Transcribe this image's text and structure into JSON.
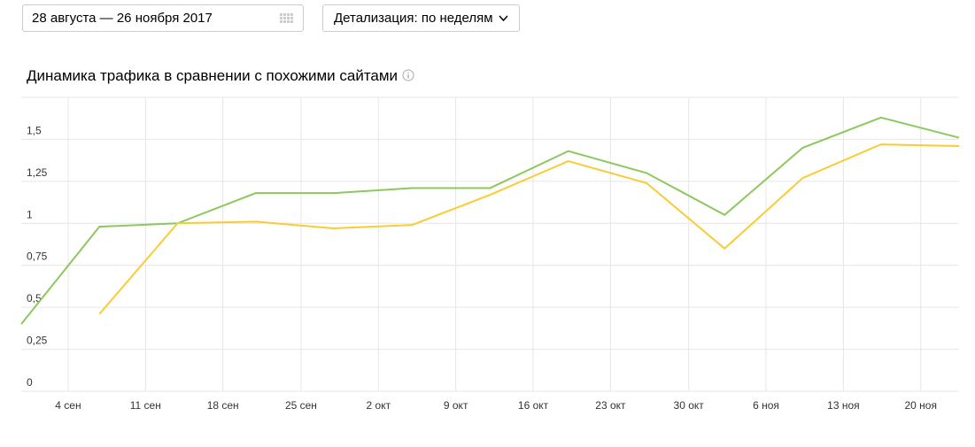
{
  "controls": {
    "date_range": "28 августа — 26 ноября 2017",
    "detail": "Детализация: по неделям"
  },
  "chart_data": {
    "type": "line",
    "title": "Динамика трафика в сравнении с похожими сайтами",
    "x": [
      0,
      1,
      2,
      3,
      4,
      5,
      6,
      7,
      8,
      9,
      10,
      11,
      12
    ],
    "xlim": [
      0,
      12
    ],
    "xticks": [
      {
        "value": 0.6,
        "label": "4 сен"
      },
      {
        "value": 1.59,
        "label": "11 сен"
      },
      {
        "value": 2.58,
        "label": "18 сен"
      },
      {
        "value": 3.58,
        "label": "25 сен"
      },
      {
        "value": 4.57,
        "label": "2 окт"
      },
      {
        "value": 5.56,
        "label": "9 окт"
      },
      {
        "value": 6.55,
        "label": "16 окт"
      },
      {
        "value": 7.54,
        "label": "23 окт"
      },
      {
        "value": 8.54,
        "label": "30 окт"
      },
      {
        "value": 9.53,
        "label": "6 ноя"
      },
      {
        "value": 10.52,
        "label": "13 ноя"
      },
      {
        "value": 11.51,
        "label": "20 ноя"
      }
    ],
    "ylim": [
      0,
      1.75
    ],
    "yticks": [
      0,
      {
        "value": 0.25,
        "label": "0,25"
      },
      {
        "value": 0.5,
        "label": "0,5"
      },
      {
        "value": 0.75,
        "label": "0,75"
      },
      1,
      {
        "value": 1.25,
        "label": "1,25"
      },
      {
        "value": 1.5,
        "label": "1,5"
      }
    ],
    "grid": true,
    "series": [
      {
        "color": "#8dc85f",
        "values": [
          0.4,
          0.98,
          1.0,
          1.18,
          1.18,
          1.21,
          1.21,
          1.43,
          1.3,
          1.05,
          1.45,
          1.63,
          1.51
        ]
      },
      {
        "color": "#f8cc33",
        "values": [
          null,
          0.46,
          1.0,
          1.01,
          0.97,
          0.99,
          1.17,
          1.37,
          1.24,
          0.85,
          1.27,
          1.47,
          1.46
        ]
      }
    ]
  }
}
